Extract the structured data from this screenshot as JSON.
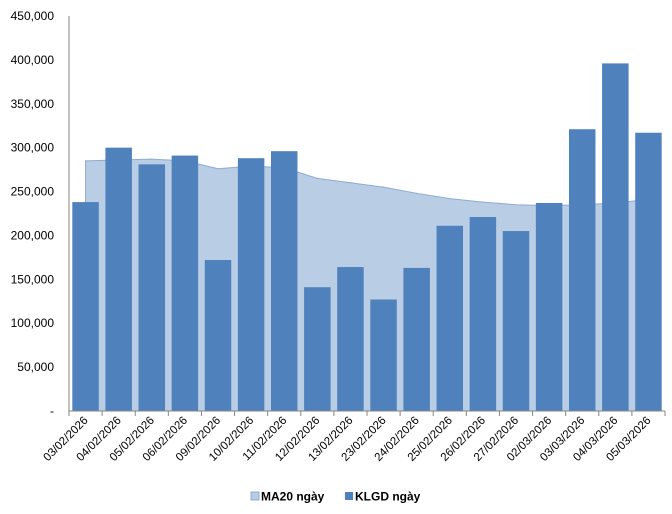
{
  "chart_data": {
    "type": "bar",
    "categories": [
      "03/02/2026",
      "04/02/2026",
      "05/02/2026",
      "06/02/2026",
      "09/02/2026",
      "10/02/2026",
      "11/02/2026",
      "12/02/2026",
      "13/02/2026",
      "23/02/2026",
      "24/02/2026",
      "25/02/2026",
      "26/02/2026",
      "27/02/2026",
      "02/03/2026",
      "03/03/2026",
      "04/03/2026",
      "05/03/2026"
    ],
    "series": [
      {
        "name": "KLGD ngày",
        "type": "bar",
        "color": "#4f81bd",
        "values": [
          238000,
          300000,
          281000,
          291000,
          172000,
          288000,
          296000,
          141000,
          164000,
          127000,
          163000,
          211000,
          221000,
          205000,
          237000,
          321000,
          396000,
          317000
        ]
      },
      {
        "name": "MA20 ngày",
        "type": "area",
        "color": "#b9cde5",
        "values": [
          285000,
          286000,
          287000,
          285000,
          276000,
          279000,
          277000,
          265000,
          260000,
          255000,
          248000,
          242000,
          238000,
          235000,
          234000,
          235000,
          237000,
          241000
        ]
      }
    ],
    "y_ticks": [
      "-",
      "50,000",
      "100,000",
      "150,000",
      "200,000",
      "250,000",
      "300,000",
      "350,000",
      "400,000",
      "450,000"
    ],
    "ylim": [
      0,
      450000
    ],
    "grid": false,
    "legend_position": "bottom"
  }
}
